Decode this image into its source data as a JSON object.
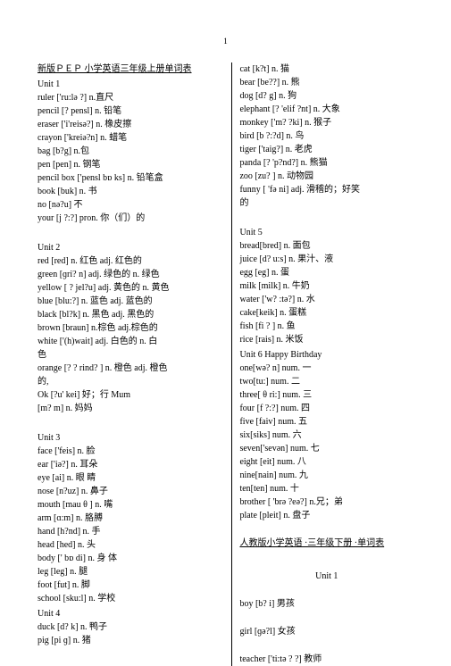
{
  "pageNumber": "1",
  "left": {
    "headerTitle": "新版ＰＥＰ 小学英语三年级上册单词表",
    "sections": [
      {
        "label": "Unit 1",
        "entries": [
          "ruler ['ru:lə ?]    n.直尺",
          "pencil [? pensl]    n. 铅笔",
          "eraser ['i'reisə?]    n. 橡皮擦",
          "crayon ['kreiə?n]    n. 蜡笔",
          "bag [b?g]    n.包",
          "pen [pen]    n. 钢笔",
          "pencil box ['pensl bɒ ks]   n. 铅笔盒",
          "book [buk]    n. 书",
          "no [nə?u]            不",
          "your [j ?:?]      pron. 你（们）的"
        ]
      },
      {
        "spacer": true
      },
      {
        "label": "Unit 2",
        "entries": [
          "red [red]  n. 红色        adj. 红色的",
          "green [ɡri? n]    adj. 绿色的 n. 绿色",
          "yellow [ ? jel?u] adj. 黄色的    n. 黄色",
          "blue [blu:?]     n. 蓝色    adj. 蓝色的",
          "black [bl?k]    n. 黑色    adj. 黑色的",
          "brown [braun]    n.棕色   adj.棕色的",
          "white ['(h)wait]     adj. 白色的         n. 白",
          "色",
          "orange [? ? rind? ]    n. 橙色 adj. 橙色",
          "的,",
          "Ok    [?u' kei]     好；行              Mum",
          "[m? m]        n. 妈妈"
        ]
      },
      {
        "spacer": true
      },
      {
        "label": "Unit 3",
        "entries": [
          "face         ['feis]                 n.         脸",
          "ear ['iə?]    n. 耳朵",
          "eye       [ai]           n.       眼       睛",
          "nose [n?uz]     n. 鼻子",
          "mouth       [mau θ ]           n.       嘴",
          "arm [ɑ:m]     n. 胳膊",
          "hand       [h?nd]              n.       手",
          "head [hed]    n. 头",
          "body      [' bɒ di]        n. 身       体",
          "leg [leg] n. 腿",
          "foot         [fut]                n.        脚",
          "school [sku:l]    n. 学校"
        ]
      },
      {
        "label": "Unit 4",
        "entries": [
          "duck [d? k]    n. 鸭子",
          "pig [pi ɡ]     n. 猪"
        ]
      }
    ]
  },
  "right": {
    "sections": [
      {
        "entries": [
          "cat [k?t]    n. 猫",
          "bear [be??]  n. 熊",
          "dog [d? g]   n. 狗",
          "elephant [? 'elif ?nt]   n. 大象",
          "monkey ['m? ?ki]     n. 猴子",
          "bird [b ?:?d]     n. 鸟",
          "tiger ['taig?]    n.   老虎",
          "panda [? 'p?nd?]    n. 熊猫",
          "zoo  [zu? ]  n. 动物园",
          "funny  [  'fə ni]   adj.    滑稽的；好笑",
          "的"
        ]
      },
      {
        "spacer": true
      },
      {
        "label": "Unit 5",
        "entries": [
          "bread[bred]    n. 面包",
          "juice [d? u:s] n. 果汁、液",
          "egg   [eg]     n.   蛋",
          "milk [milk]       n. 牛奶",
          "water ['w? :tə?] n. 水",
          "cake[keik]    n. 蛋糕",
          "fish     [fi ? ]          n.        鱼",
          "rice [rais]         n.  米饭"
        ]
      },
      {
        "label": "Unit 6 Happy Birthday",
        "entries": [
          "one[wə? n]    num. 一",
          "two[tu:]         num. 二",
          "three[ θ ri:]     num. 三",
          "four [f ?:?]    num. 四",
          "five [faiv]    num. 五",
          "six[siks] num. 六",
          "seven['sevən] num. 七",
          "eight [eit] num. 八",
          "nine[nain]   num. 九",
          "ten[ten]  num. 十",
          "brother [  'brə ?eə?] n.兄；弟",
          "plate [pleit]    n. 盘子"
        ]
      },
      {
        "spacer": true
      },
      {
        "titleUnderlined": "人教版小学英语 ·三年级下册 ·单词表"
      },
      {
        "spacer": true
      },
      {
        "subTitle": "Unit    1"
      },
      {
        "spacer": true
      },
      {
        "entries": [
          "boy  [b? i]              男孩"
        ]
      },
      {
        "spacer": true
      },
      {
        "entries": [
          "girl   [ɡə?l]              女孩"
        ]
      },
      {
        "spacer": true
      },
      {
        "entries": [
          "teacher ['ti:tə ? ?] 教师"
        ]
      }
    ]
  }
}
